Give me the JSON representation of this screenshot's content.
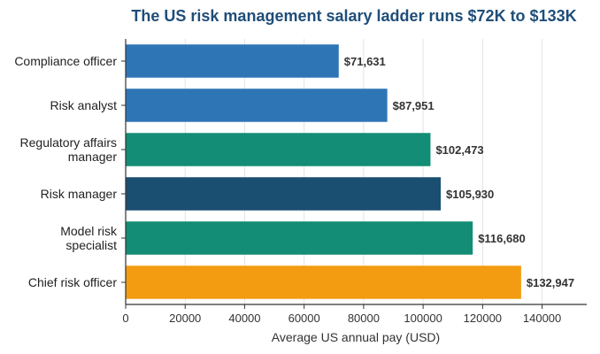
{
  "chart_data": {
    "type": "bar",
    "orientation": "horizontal",
    "title": "The US risk management salary ladder runs $72K to $133K",
    "xlabel": "Average US annual pay (USD)",
    "ylabel": "",
    "categories": [
      [
        "Compliance officer"
      ],
      [
        "Risk analyst"
      ],
      [
        "Regulatory affairs",
        "manager"
      ],
      [
        "Risk manager"
      ],
      [
        "Model risk",
        "specialist"
      ],
      [
        "Chief risk officer"
      ]
    ],
    "values": [
      71631,
      87951,
      102473,
      105930,
      116680,
      132947
    ],
    "value_labels": [
      "$71,631",
      "$87,951",
      "$102,473",
      "$105,930",
      "$116,680",
      "$132,947"
    ],
    "bar_colors": [
      "#2e75b6",
      "#2e75b6",
      "#138d75",
      "#1b4f72",
      "#138d75",
      "#f39c12"
    ],
    "xlim": [
      0,
      155000
    ],
    "xticks": [
      0,
      20000,
      40000,
      60000,
      80000,
      100000,
      120000,
      140000
    ],
    "xtick_labels": [
      "0",
      "20000",
      "40000",
      "60000",
      "80000",
      "100000",
      "120000",
      "140000"
    ],
    "grid": "vertical",
    "legend": "none"
  },
  "colors": {
    "title": "#1f4e79",
    "axis": "#333333",
    "grid": "#e3e3e3"
  }
}
